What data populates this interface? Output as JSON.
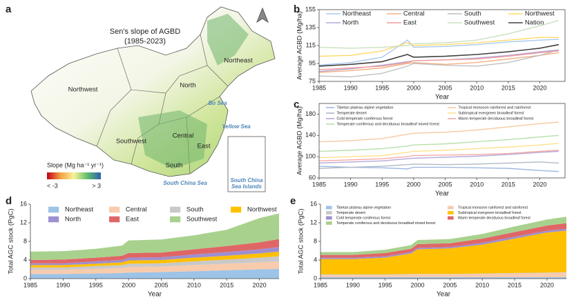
{
  "map": {
    "panel": "a",
    "title": "Sen's slope of AGBD",
    "period": "(1985-2023)",
    "regions": [
      "Northeast",
      "Northwest",
      "North",
      "Southwest",
      "Central",
      "East",
      "South"
    ],
    "seas": [
      "Bo Sea",
      "Yellow Sea",
      "South China Sea"
    ],
    "islands": [
      "South China",
      "Sea Islands"
    ],
    "legend_title": "Slope (Mg ha⁻¹ yr⁻¹)",
    "legend_min": "< -3",
    "legend_max": "> 3"
  },
  "chart_data": [
    {
      "type": "line",
      "panel": "b",
      "x_label": "Year",
      "y_label": "Average AGBD (Mg/ha)",
      "frame": true,
      "legend_columns": 4,
      "x": [
        1985,
        1990,
        1995,
        1999,
        2000,
        2005,
        2010,
        2015,
        2020,
        2023
      ],
      "xlim": [
        1985,
        2024
      ],
      "xticks": [
        1985,
        1990,
        1995,
        2000,
        2005,
        2010,
        2015,
        2020
      ],
      "ylim": [
        75,
        155
      ],
      "yticks": [
        75,
        95,
        115,
        135,
        155
      ],
      "series": [
        {
          "name": "Northeast",
          "color": "#a8c8ec",
          "values": [
            93,
            96,
            102,
            121,
            113,
            114,
            116,
            119,
            121,
            122
          ]
        },
        {
          "name": "Central",
          "color": "#f4b183",
          "values": [
            85,
            87,
            90,
            95,
            96,
            94,
            96,
            100,
            104,
            107
          ]
        },
        {
          "name": "South",
          "color": "#bfbfbf",
          "values": [
            81,
            80,
            84,
            92,
            95,
            93,
            92,
            96,
            104,
            110
          ]
        },
        {
          "name": "Northwest",
          "color": "#ffd966",
          "values": [
            103,
            104,
            109,
            118,
            115,
            116,
            118,
            121,
            124,
            124
          ]
        },
        {
          "name": "North",
          "color": "#b4a7d6",
          "values": [
            86,
            89,
            93,
            97,
            98,
            99,
            101,
            104,
            108,
            110
          ]
        },
        {
          "name": "East",
          "color": "#f19c9c",
          "values": [
            88,
            90,
            92,
            96,
            98,
            99,
            100,
            103,
            107,
            109
          ]
        },
        {
          "name": "Southwest",
          "color": "#c9e0c0",
          "values": [
            113,
            112,
            113,
            115,
            117,
            118,
            121,
            128,
            137,
            143
          ]
        },
        {
          "name": "Nation",
          "color": "#404040",
          "values": [
            92,
            94,
            97,
            105,
            102,
            103,
            105,
            108,
            112,
            116
          ]
        }
      ]
    },
    {
      "type": "line",
      "panel": "c",
      "x_label": "Year",
      "y_label": "Average AGBD (Mg/ha)",
      "frame": true,
      "legend_columns": 2,
      "x": [
        1985,
        1990,
        1995,
        1999,
        2000,
        2005,
        2010,
        2015,
        2020,
        2023
      ],
      "xlim": [
        1985,
        2024
      ],
      "xticks": [
        1985,
        1990,
        1995,
        2000,
        2005,
        2010,
        2015,
        2020
      ],
      "ylim": [
        60,
        200
      ],
      "yticks": [
        60,
        100,
        140,
        180
      ],
      "series": [
        {
          "name": "Tibetan plateau alpine vegetation",
          "color": "#9db8e0",
          "values": [
            82,
            80,
            79,
            77,
            80,
            80,
            79,
            78,
            74,
            72
          ]
        },
        {
          "name": "Tropical monsoon rainforest and rainforest",
          "color": "#f8c9a0",
          "values": [
            128,
            130,
            134,
            142,
            144,
            146,
            150,
            156,
            162,
            165
          ]
        },
        {
          "name": "Temperate desert",
          "color": "#b0b8c4",
          "values": [
            78,
            80,
            82,
            85,
            86,
            85,
            86,
            88,
            90,
            88
          ]
        },
        {
          "name": "Subtropical evergreen broadleaf forest",
          "color": "#ffe08a",
          "values": [
            98,
            100,
            102,
            108,
            110,
            112,
            115,
            118,
            122,
            125
          ]
        },
        {
          "name": "Cold temperate coniferous forest",
          "color": "#b4a7d6",
          "values": [
            88,
            90,
            92,
            96,
            97,
            99,
            101,
            104,
            108,
            110
          ]
        },
        {
          "name": "Warm temperate deciduous broadleaf forest",
          "color": "#f4a9a8",
          "values": [
            92,
            94,
            96,
            100,
            102,
            103,
            104,
            106,
            110,
            112
          ]
        },
        {
          "name": "Temperate coniferous and deciduous broadleaf mixed forest",
          "color": "#b7dfa8",
          "values": [
            110,
            112,
            115,
            120,
            122,
            124,
            128,
            132,
            137,
            140
          ]
        }
      ]
    },
    {
      "type": "area",
      "panel": "d",
      "x_label": "Year",
      "y_label": "Total AGC stock (PgC)",
      "frame": false,
      "legend_columns": 4,
      "x": [
        1985,
        1990,
        1995,
        1999,
        2000,
        2005,
        2010,
        2015,
        2020,
        2023
      ],
      "xlim": [
        1985,
        2023
      ],
      "xticks": [
        1985,
        1990,
        1995,
        2000,
        2005,
        2010,
        2015,
        2020
      ],
      "ylim": [
        0,
        16
      ],
      "yticks": [
        0,
        4,
        8,
        12,
        16
      ],
      "series": [
        {
          "name": "Northeast",
          "color": "#9dc3e6",
          "values": [
            1.0,
            1.0,
            1.1,
            1.2,
            1.3,
            1.4,
            1.6,
            1.8,
            2.0,
            2.1
          ]
        },
        {
          "name": "Central",
          "color": "#f8cbad",
          "values": [
            0.9,
            0.9,
            1.0,
            1.1,
            1.2,
            1.2,
            1.3,
            1.4,
            1.5,
            1.6
          ]
        },
        {
          "name": "South",
          "color": "#c9c9c9",
          "values": [
            0.5,
            0.5,
            0.6,
            0.6,
            0.7,
            0.7,
            0.8,
            0.9,
            1.0,
            1.1
          ]
        },
        {
          "name": "Northwest",
          "color": "#ffc000",
          "values": [
            0.5,
            0.5,
            0.5,
            0.6,
            0.7,
            0.7,
            0.8,
            0.8,
            0.9,
            1.0
          ]
        },
        {
          "name": "North",
          "color": "#9e8fd0",
          "values": [
            0.4,
            0.4,
            0.5,
            0.5,
            0.6,
            0.6,
            0.7,
            0.8,
            0.9,
            1.0
          ]
        },
        {
          "name": "East",
          "color": "#e06666",
          "values": [
            0.7,
            0.8,
            0.8,
            0.9,
            1.0,
            1.0,
            1.1,
            1.3,
            1.5,
            1.7
          ]
        },
        {
          "name": "Southwest",
          "color": "#a9d18e",
          "values": [
            1.8,
            1.8,
            1.9,
            2.2,
            2.7,
            2.8,
            3.0,
            3.5,
            5.2,
            5.5
          ]
        }
      ]
    },
    {
      "type": "area",
      "panel": "e",
      "x_label": "Year",
      "y_label": "Total AGC stock (PgC)",
      "frame": false,
      "legend_columns": 2,
      "x": [
        1985,
        1990,
        1995,
        1999,
        2000,
        2005,
        2010,
        2015,
        2020,
        2023
      ],
      "xlim": [
        1985,
        2023
      ],
      "xticks": [
        1985,
        1990,
        1995,
        2000,
        2005,
        2010,
        2015,
        2020
      ],
      "ylim": [
        0,
        16
      ],
      "yticks": [
        0,
        4,
        8,
        12,
        16
      ],
      "series": [
        {
          "name": "Tibetan plateau alpine vegetation",
          "color": "#9dc3e6",
          "values": [
            0.3,
            0.3,
            0.3,
            0.3,
            0.3,
            0.3,
            0.3,
            0.3,
            0.3,
            0.3
          ]
        },
        {
          "name": "Tropical monsoon rainforest and rainforest",
          "color": "#f8cbad",
          "values": [
            0.5,
            0.5,
            0.5,
            0.6,
            0.6,
            0.6,
            0.7,
            0.8,
            0.9,
            1.0
          ]
        },
        {
          "name": "Temperate desert",
          "color": "#c9c9c9",
          "values": [
            0.1,
            0.1,
            0.1,
            0.1,
            0.1,
            0.1,
            0.1,
            0.1,
            0.1,
            0.1
          ]
        },
        {
          "name": "Subtropical evergreen broadleaf forest",
          "color": "#ffc000",
          "values": [
            3.3,
            3.3,
            3.6,
            4.4,
            5.3,
            5.5,
            6.2,
            7.4,
            8.6,
            8.9
          ]
        },
        {
          "name": "Cold temperate coniferous forest",
          "color": "#9e8fd0",
          "values": [
            0.3,
            0.3,
            0.3,
            0.3,
            0.3,
            0.3,
            0.4,
            0.4,
            0.4,
            0.4
          ]
        },
        {
          "name": "Warm temperate deciduous broadleaf forest",
          "color": "#e06666",
          "values": [
            0.6,
            0.6,
            0.7,
            0.7,
            0.8,
            0.8,
            0.9,
            1.0,
            1.1,
            1.2
          ]
        },
        {
          "name": "Temperate coniferous and deciduous broadleaf mixed forest",
          "color": "#a9d18e",
          "values": [
            0.6,
            0.6,
            0.7,
            0.8,
            0.9,
            0.9,
            1.0,
            1.2,
            1.3,
            1.4
          ]
        }
      ]
    }
  ]
}
